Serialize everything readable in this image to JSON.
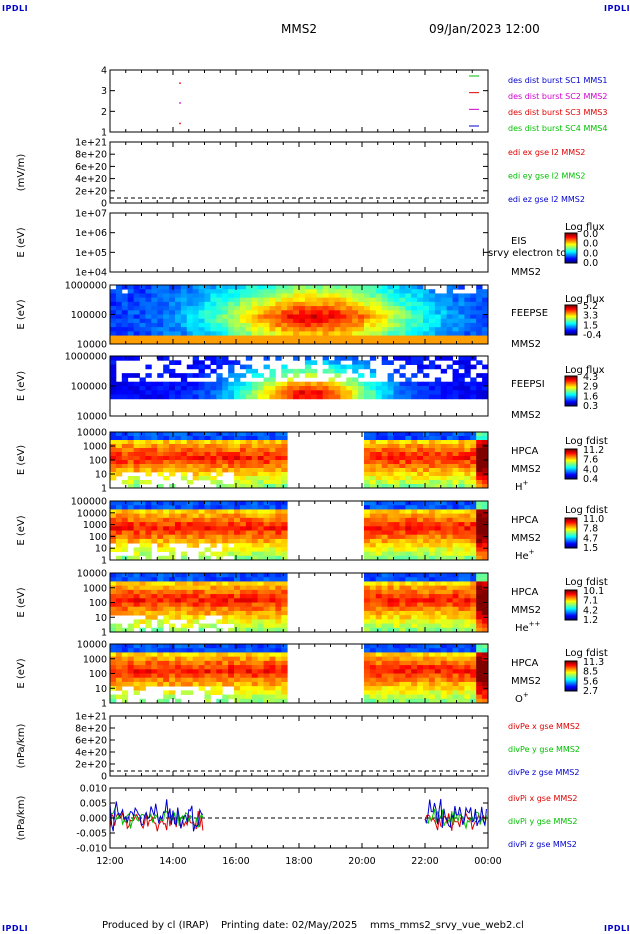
{
  "header": {
    "corner_tl": "IPDLI",
    "corner_tr": "IPDLI",
    "corner_bl": "IPDLI",
    "corner_br": "IPDLI",
    "title": "MMS2",
    "date": "09/Jan/2023 12:00"
  },
  "footer": {
    "produced": "Produced by cl (IRAP)",
    "printing": "Printing date: 02/May/2025",
    "script": "mms_mms2_srvy_vue_web2.cl"
  },
  "colors": {
    "red": "#e00000",
    "green": "#00c000",
    "blue": "#0000cc",
    "magenta": "#d000d0"
  },
  "time_axis": {
    "ticks": [
      "12:00",
      "14:00",
      "16:00",
      "18:00",
      "20:00",
      "22:00",
      "00:00"
    ],
    "start_hours": 12,
    "end_hours": 24
  },
  "chart_data": [
    {
      "type": "scatter",
      "id": "burst",
      "ylabels": [
        "4",
        "3",
        "2",
        "1"
      ],
      "legend": [
        {
          "text": "des dist burst SC1 MMS1",
          "color": "#0000cc"
        },
        {
          "text": "des dist burst SC2 MMS2",
          "color": "#d000d0"
        },
        {
          "text": "des dist burst SC3 MMS3",
          "color": "#e00000"
        },
        {
          "text": "des dist burst SC4 MMS4",
          "color": "#00c000"
        }
      ]
    },
    {
      "type": "line",
      "id": "edi",
      "ylabel": "(mV/m)",
      "ticks": [
        "1e+21",
        "8e+20",
        "6e+20",
        "4e+20",
        "2e+20",
        "0"
      ],
      "legend": [
        {
          "text": "edi ex gse l2 MMS2",
          "color": "#e00000"
        },
        {
          "text": "edi ey gse l2 MMS2",
          "color": "#00c000"
        },
        {
          "text": "edi ez gse l2 MMS2",
          "color": "#0000cc"
        }
      ]
    },
    {
      "type": "heatmap",
      "id": "eis",
      "ylabel": "E (eV)",
      "ticks": [
        "1e+07",
        "1e+06",
        "1e+05",
        "1e+04"
      ],
      "label1": "EIS",
      "label2": "MMS2",
      "overlay": "l srvy electron to",
      "cbar_title": "Log flux",
      "cbar": [
        "0.0",
        "0.0",
        "0.0",
        "0.0"
      ]
    },
    {
      "type": "heatmap",
      "id": "feepse",
      "ylabel": "E (eV)",
      "ticks": [
        "1000000",
        "100000",
        "10000"
      ],
      "label1": "FEEPSE",
      "label2": "MMS2",
      "cbar_title": "Log flux",
      "cbar": [
        "5.2",
        "3.3",
        "1.5",
        "-0.4"
      ]
    },
    {
      "type": "heatmap",
      "id": "feepsi",
      "ylabel": "E (eV)",
      "ticks": [
        "1000000",
        "100000",
        "10000"
      ],
      "label1": "FEEPSI",
      "label2": "MMS2",
      "cbar_title": "Log flux",
      "cbar": [
        "4.3",
        "2.9",
        "1.6",
        "0.3"
      ]
    },
    {
      "type": "heatmap",
      "id": "hpca_h",
      "ylabel": "E (eV)",
      "ticks": [
        "10000",
        "1000",
        "100",
        "10",
        "1"
      ],
      "label1": "HPCA",
      "label2": "MMS2",
      "species": "H",
      "sup": "+",
      "cbar_title": "Log fdist",
      "cbar": [
        "11.2",
        "7.6",
        "4.0",
        "0.4"
      ]
    },
    {
      "type": "heatmap",
      "id": "hpca_he",
      "ylabel": "E (eV)",
      "ticks": [
        "100000",
        "10000",
        "1000",
        "100",
        "10",
        "1"
      ],
      "label1": "HPCA",
      "label2": "MMS2",
      "species": "He",
      "sup": "+",
      "cbar_title": "Log fdist",
      "cbar": [
        "11.0",
        "7.8",
        "4.7",
        "1.5"
      ]
    },
    {
      "type": "heatmap",
      "id": "hpca_hepp",
      "ylabel": "E (eV)",
      "ticks": [
        "10000",
        "1000",
        "100",
        "10",
        "1"
      ],
      "label1": "HPCA",
      "label2": "MMS2",
      "species": "He",
      "sup": "++",
      "cbar_title": "Log fdist",
      "cbar": [
        "10.1",
        "7.1",
        "4.2",
        "1.2"
      ]
    },
    {
      "type": "heatmap",
      "id": "hpca_o",
      "ylabel": "E (eV)",
      "ticks": [
        "10000",
        "1000",
        "100",
        "10",
        "1"
      ],
      "label1": "HPCA",
      "label2": "MMS2",
      "species": "O",
      "sup": "+",
      "cbar_title": "Log fdist",
      "cbar": [
        "11.3",
        "8.5",
        "5.6",
        "2.7"
      ]
    },
    {
      "type": "line",
      "id": "divpe",
      "ylabel": "(nPa/km)",
      "ticks": [
        "1e+21",
        "8e+20",
        "6e+20",
        "4e+20",
        "2e+20",
        "0"
      ],
      "legend": [
        {
          "text": "divPe x gse MMS2",
          "color": "#e00000"
        },
        {
          "text": "divPe y gse MMS2",
          "color": "#00c000"
        },
        {
          "text": "divPe z gse MMS2",
          "color": "#0000cc"
        }
      ]
    },
    {
      "type": "line",
      "id": "divpi",
      "ylabel": "(nPa/km)",
      "ticks": [
        "0.010",
        "0.005",
        "0.000",
        "-0.005",
        "-0.010"
      ],
      "ylim": [
        -0.01,
        0.01
      ],
      "legend": [
        {
          "text": "divPi x gse MMS2",
          "color": "#e00000"
        },
        {
          "text": "divPi y gse MMS2",
          "color": "#00c000"
        },
        {
          "text": "divPi z gse MMS2",
          "color": "#0000cc"
        }
      ]
    }
  ]
}
